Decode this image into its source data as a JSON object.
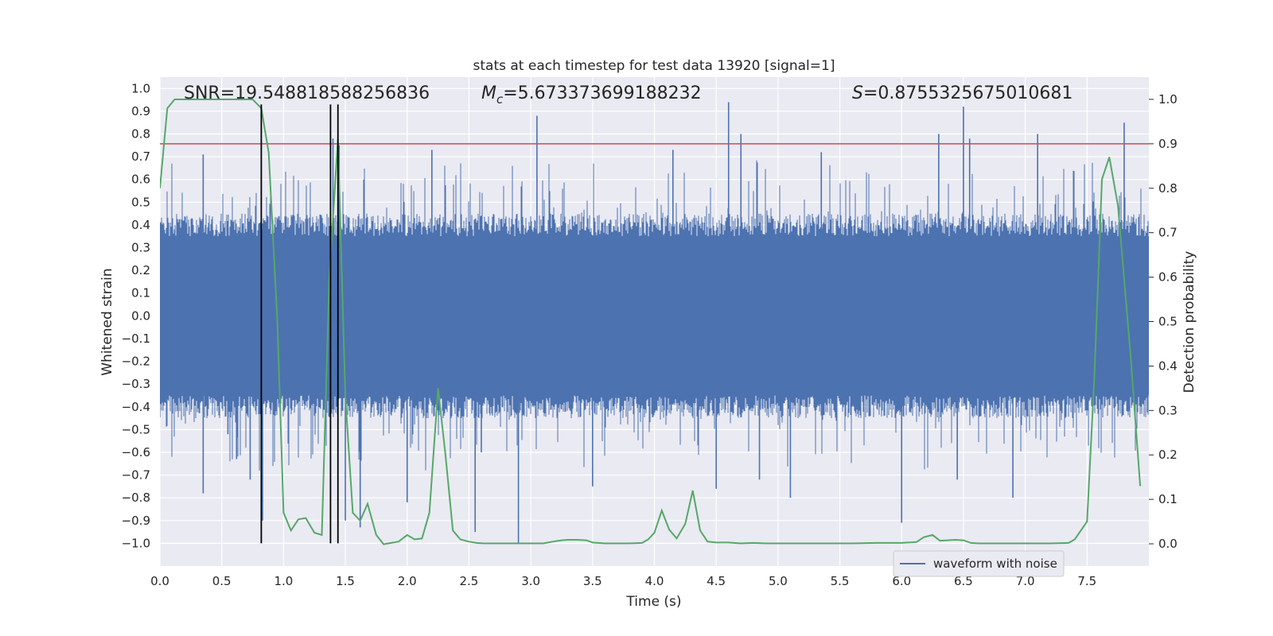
{
  "chart_data": {
    "type": "line",
    "title": "stats at each timestep for test data 13920 [signal=1]",
    "xlabel": "Time (s)",
    "ylabel": "Whitened strain",
    "y2label": "Detection probability",
    "xlim": [
      0,
      8
    ],
    "ylim": [
      -1.1,
      1.05
    ],
    "y2lim": [
      -0.05,
      1.05
    ],
    "xticks": [
      0,
      0.5,
      1,
      1.5,
      2,
      2.5,
      3,
      3.5,
      4,
      4.5,
      5,
      5.5,
      6,
      6.5,
      7,
      7.5
    ],
    "xtick_labels": [
      "0.0",
      "0.5",
      "1.0",
      "1.5",
      "2.0",
      "2.5",
      "3.0",
      "3.5",
      "4.0",
      "4.5",
      "5.0",
      "5.5",
      "6.0",
      "6.5",
      "7.0",
      "7.5"
    ],
    "yticks": [
      -1,
      -0.9,
      -0.8,
      -0.7,
      -0.6,
      -0.5,
      -0.4,
      -0.3,
      -0.2,
      -0.1,
      0,
      0.1,
      0.2,
      0.3,
      0.4,
      0.5,
      0.6,
      0.7,
      0.8,
      0.9,
      1.0
    ],
    "ytick_labels": [
      "−1.0",
      "−0.9",
      "−0.8",
      "−0.7",
      "−0.6",
      "−0.5",
      "−0.4",
      "−0.3",
      "−0.2",
      "−0.1",
      "0.0",
      "0.1",
      "0.2",
      "0.3",
      "0.4",
      "0.5",
      "0.6",
      "0.7",
      "0.8",
      "0.9",
      "1.0"
    ],
    "y2ticks": [
      0,
      0.1,
      0.2,
      0.3,
      0.4,
      0.5,
      0.6,
      0.7,
      0.8,
      0.9,
      1.0
    ],
    "y2tick_labels": [
      "0.0",
      "0.1",
      "0.2",
      "0.3",
      "0.4",
      "0.5",
      "0.6",
      "0.7",
      "0.8",
      "0.9",
      "1.0"
    ],
    "annotations": {
      "snr": "SNR=19.548818588256836",
      "mc_prefix": "M",
      "mc_sub": "c",
      "mc_value": "=5.673373699188232",
      "s_prefix": "S",
      "s_value": "=0.8755325675010681"
    },
    "legend": {
      "label": "waveform with noise",
      "position": "lower-right"
    },
    "colors": {
      "waveform": "#4c72b0",
      "probability": "#55a868",
      "threshold": "#c44e52",
      "marker": "#000000",
      "background": "#eaeaf2"
    },
    "threshold": 0.9,
    "vlines": [
      0.82,
      1.38,
      1.44
    ],
    "vline_range": [
      -1.0,
      0.93
    ],
    "waveform": {
      "seed": 13920,
      "core_amplitude": 0.35,
      "typical_peak": [
        0.45,
        0.7
      ],
      "spikes": [
        [
          0.35,
          0.71
        ],
        [
          0.35,
          -0.78
        ],
        [
          0.55,
          -0.52
        ],
        [
          0.62,
          -0.63
        ],
        [
          0.73,
          -0.72
        ],
        [
          0.83,
          -0.9
        ],
        [
          1.4,
          0.78
        ],
        [
          1.45,
          0.75
        ],
        [
          1.5,
          -0.9
        ],
        [
          1.62,
          -0.93
        ],
        [
          2.0,
          -0.82
        ],
        [
          2.2,
          0.73
        ],
        [
          2.55,
          -0.95
        ],
        [
          2.6,
          -0.6
        ],
        [
          2.9,
          -1.0
        ],
        [
          3.05,
          0.88
        ],
        [
          3.5,
          -0.75
        ],
        [
          4.15,
          0.73
        ],
        [
          4.5,
          -0.76
        ],
        [
          4.6,
          0.94
        ],
        [
          4.7,
          0.8
        ],
        [
          4.85,
          -0.72
        ],
        [
          5.1,
          -0.8
        ],
        [
          5.35,
          0.72
        ],
        [
          6.0,
          -0.91
        ],
        [
          6.3,
          0.8
        ],
        [
          6.45,
          -0.72
        ],
        [
          6.5,
          0.92
        ],
        [
          6.55,
          0.78
        ],
        [
          6.9,
          -0.8
        ],
        [
          7.1,
          0.8
        ],
        [
          7.8,
          0.85
        ]
      ]
    },
    "probability": {
      "x": [
        0,
        0.06,
        0.12,
        0.2,
        0.3,
        0.4,
        0.5,
        0.6,
        0.7,
        0.75,
        0.82,
        0.88,
        0.95,
        1.0,
        1.06,
        1.12,
        1.18,
        1.25,
        1.31,
        1.37,
        1.44,
        1.5,
        1.56,
        1.62,
        1.68,
        1.75,
        1.81,
        1.87,
        1.93,
        2.0,
        2.06,
        2.12,
        2.18,
        2.25,
        2.31,
        2.37,
        2.43,
        2.5,
        2.56,
        2.62,
        2.7,
        2.8,
        2.9,
        3.0,
        3.1,
        3.2,
        3.25,
        3.3,
        3.37,
        3.45,
        3.5,
        3.6,
        3.7,
        3.8,
        3.9,
        3.95,
        4.0,
        4.06,
        4.12,
        4.18,
        4.25,
        4.31,
        4.37,
        4.43,
        4.5,
        4.6,
        4.7,
        4.8,
        4.9,
        5.0,
        5.2,
        5.4,
        5.6,
        5.8,
        6.0,
        6.12,
        6.18,
        6.25,
        6.31,
        6.37,
        6.43,
        6.5,
        6.56,
        6.62,
        6.8,
        7.0,
        7.2,
        7.35,
        7.4,
        7.5,
        7.56,
        7.62,
        7.68,
        7.75,
        7.85,
        7.93
      ],
      "y": [
        0.8,
        0.98,
        1.0,
        1.0,
        1.0,
        1.0,
        1.0,
        1.0,
        1.0,
        1.0,
        0.98,
        0.88,
        0.5,
        0.07,
        0.03,
        0.055,
        0.058,
        0.025,
        0.02,
        0.6,
        0.91,
        0.33,
        0.07,
        0.052,
        0.09,
        0.02,
        -0.001,
        0.002,
        0.005,
        0.02,
        0.01,
        0.012,
        0.07,
        0.35,
        0.2,
        0.03,
        0.01,
        0.005,
        0.002,
        0.001,
        0.001,
        0.001,
        0.001,
        0.001,
        0.001,
        0.006,
        0.008,
        0.009,
        0.009,
        0.008,
        0.003,
        0.001,
        0.001,
        0.001,
        0.002,
        0.01,
        0.025,
        0.075,
        0.032,
        0.012,
        0.045,
        0.12,
        0.03,
        0.005,
        0.003,
        0.003,
        0.001,
        0.002,
        0.001,
        0.001,
        0.001,
        0.001,
        0.001,
        0.002,
        0.002,
        0.004,
        0.015,
        0.02,
        0.007,
        0.008,
        0.009,
        0.008,
        0.002,
        0.001,
        0.001,
        0.001,
        0.001,
        0.002,
        0.01,
        0.05,
        0.38,
        0.82,
        0.87,
        0.76,
        0.43,
        0.13
      ]
    }
  }
}
